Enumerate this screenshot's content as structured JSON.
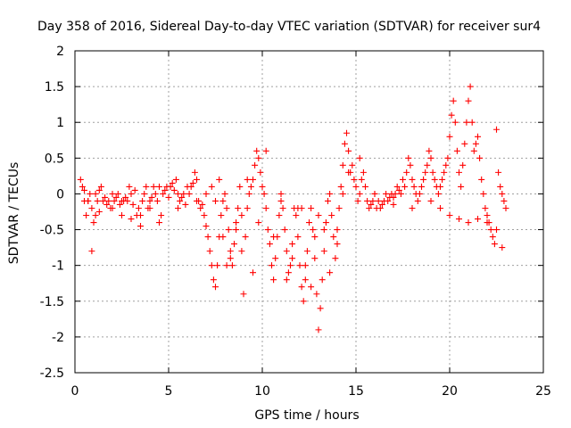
{
  "chart_data": {
    "type": "scatter",
    "title": "Day 358 of 2016, Sidereal Day-to-day VTEC variation (SDTVAR) for receiver sur4",
    "xlabel": "GPS time / hours",
    "ylabel": "SDTVAR / TECUs",
    "xlim": [
      0,
      25
    ],
    "ylim": [
      -2.5,
      2
    ],
    "xticks": [
      "0",
      "5",
      "10",
      "15",
      "20",
      "25"
    ],
    "yticks": [
      "-2.5",
      "-2",
      "-1.5",
      "-1",
      "-0.5",
      "0",
      "0.5",
      "1",
      "1.5",
      "2"
    ],
    "grid": true,
    "marker": "+",
    "color": "#ff0000",
    "series": [
      {
        "name": "SDTVAR",
        "x": [
          0.3,
          0.4,
          0.5,
          0.6,
          0.7,
          0.8,
          0.9,
          1.0,
          1.1,
          1.2,
          1.3,
          1.4,
          1.5,
          1.6,
          1.7,
          1.8,
          1.9,
          2.0,
          2.1,
          2.2,
          2.3,
          2.4,
          2.5,
          2.6,
          2.7,
          2.8,
          2.9,
          3.0,
          3.1,
          3.2,
          3.3,
          3.4,
          3.5,
          3.6,
          3.7,
          3.8,
          3.9,
          4.0,
          4.1,
          4.2,
          4.3,
          4.4,
          4.5,
          4.6,
          4.7,
          4.8,
          4.9,
          5.0,
          5.1,
          5.2,
          5.3,
          5.4,
          5.5,
          5.6,
          5.7,
          5.8,
          5.9,
          6.0,
          6.1,
          6.2,
          6.3,
          6.4,
          6.5,
          6.6,
          6.7,
          6.8,
          6.9,
          7.0,
          7.1,
          7.2,
          7.3,
          7.4,
          7.5,
          7.6,
          7.7,
          7.8,
          7.9,
          8.0,
          8.1,
          8.2,
          8.3,
          8.4,
          8.5,
          8.6,
          8.7,
          8.8,
          8.9,
          9.0,
          9.1,
          9.2,
          9.3,
          9.4,
          9.5,
          9.6,
          9.7,
          9.8,
          9.9,
          10.0,
          10.1,
          10.2,
          10.3,
          10.4,
          10.5,
          10.6,
          10.7,
          10.8,
          10.9,
          11.0,
          11.1,
          11.2,
          11.3,
          11.4,
          11.5,
          11.6,
          11.7,
          11.8,
          11.9,
          12.0,
          12.1,
          12.2,
          12.3,
          12.4,
          12.5,
          12.6,
          12.7,
          12.8,
          12.9,
          13.0,
          13.1,
          13.2,
          13.3,
          13.4,
          13.5,
          13.6,
          13.7,
          13.8,
          13.9,
          14.0,
          14.1,
          14.2,
          14.3,
          14.4,
          14.5,
          14.6,
          14.7,
          14.8,
          14.9,
          15.0,
          15.1,
          15.2,
          15.3,
          15.4,
          15.5,
          15.6,
          15.7,
          15.8,
          15.9,
          16.0,
          16.1,
          16.2,
          16.3,
          16.4,
          16.5,
          16.6,
          16.7,
          16.8,
          16.9,
          17.0,
          17.1,
          17.2,
          17.3,
          17.4,
          17.5,
          17.6,
          17.7,
          17.8,
          17.9,
          18.0,
          18.1,
          18.2,
          18.3,
          18.4,
          18.5,
          18.6,
          18.7,
          18.8,
          18.9,
          19.0,
          19.1,
          19.2,
          19.3,
          19.4,
          19.5,
          19.6,
          19.7,
          19.8,
          19.9,
          20.0,
          20.1,
          20.2,
          20.3,
          20.4,
          20.5,
          20.6,
          20.7,
          20.8,
          20.9,
          21.0,
          21.1,
          21.2,
          21.3,
          21.4,
          21.5,
          21.6,
          21.7,
          21.8,
          21.9,
          22.0,
          22.1,
          22.2,
          22.3,
          22.4,
          22.5,
          22.6,
          22.7,
          22.8,
          22.9,
          23.0,
          0.5,
          0.7,
          0.9,
          1.1,
          1.3,
          2.0,
          2.5,
          3.0,
          3.5,
          4.0,
          4.5,
          5.5,
          6.5,
          7.0,
          7.3,
          7.5,
          7.7,
          7.9,
          8.1,
          8.3,
          8.6,
          8.9,
          9.2,
          9.5,
          9.8,
          10.2,
          10.6,
          11.0,
          11.3,
          11.6,
          11.9,
          12.1,
          12.3,
          12.6,
          12.8,
          13.0,
          13.3,
          13.6,
          14.0,
          14.3,
          14.6,
          15.2,
          16.0,
          17.0,
          18.0,
          19.0,
          19.5,
          20.0,
          20.5,
          21.0,
          21.5,
          22.0,
          22.5,
          22.8
        ],
        "y": [
          0.2,
          0.1,
          0.05,
          -0.3,
          -0.1,
          0.0,
          -0.8,
          -0.4,
          0.0,
          -0.1,
          0.05,
          0.1,
          -0.1,
          -0.05,
          -0.15,
          -0.1,
          -0.2,
          0.0,
          -0.1,
          -0.05,
          0.0,
          -0.15,
          -0.1,
          -0.1,
          -0.05,
          -0.1,
          0.1,
          0.0,
          -0.15,
          0.05,
          -0.3,
          -0.2,
          -0.45,
          -0.1,
          0.0,
          0.1,
          -0.2,
          -0.1,
          -0.05,
          0.1,
          0.0,
          -0.1,
          -0.4,
          -0.3,
          0.0,
          0.05,
          0.1,
          -0.05,
          0.1,
          0.15,
          0.05,
          0.2,
          0.0,
          -0.1,
          -0.05,
          0.0,
          -0.15,
          0.1,
          0.0,
          0.1,
          0.15,
          0.3,
          0.2,
          -0.1,
          -0.2,
          -0.15,
          -0.3,
          -0.45,
          -0.6,
          -0.8,
          -1.0,
          -1.2,
          -1.3,
          -1.0,
          -0.6,
          -0.3,
          -0.1,
          0.0,
          -0.2,
          -0.5,
          -0.8,
          -1.0,
          -0.7,
          -0.4,
          -0.2,
          0.1,
          -0.3,
          -1.4,
          -0.6,
          -0.2,
          0.0,
          0.1,
          0.2,
          0.4,
          0.6,
          0.5,
          0.3,
          0.1,
          0.0,
          -0.2,
          -0.5,
          -0.7,
          -1.0,
          -1.2,
          -0.9,
          -0.6,
          -0.3,
          -0.1,
          -0.2,
          -0.5,
          -0.8,
          -1.1,
          -1.0,
          -0.7,
          -0.2,
          -0.3,
          -0.6,
          -1.0,
          -1.3,
          -1.5,
          -1.2,
          -0.8,
          -0.4,
          -0.2,
          -0.5,
          -0.9,
          -1.4,
          -1.9,
          -1.6,
          -1.2,
          -0.8,
          -0.4,
          -0.1,
          0.0,
          -0.3,
          -0.6,
          -0.9,
          -0.5,
          -0.2,
          0.1,
          0.4,
          0.7,
          0.85,
          0.6,
          0.3,
          0.4,
          0.2,
          0.1,
          -0.1,
          0.0,
          0.2,
          0.3,
          0.1,
          -0.1,
          -0.2,
          -0.15,
          -0.1,
          0.0,
          -0.2,
          -0.1,
          -0.2,
          -0.15,
          -0.1,
          0.0,
          -0.1,
          -0.05,
          0.0,
          -0.05,
          0.0,
          0.1,
          0.05,
          0.0,
          0.2,
          0.1,
          0.3,
          0.5,
          0.4,
          0.2,
          0.1,
          0.0,
          -0.1,
          0.0,
          0.1,
          0.2,
          0.3,
          0.4,
          0.6,
          0.5,
          0.3,
          0.2,
          0.1,
          0.0,
          0.1,
          0.2,
          0.3,
          0.4,
          0.5,
          0.8,
          1.1,
          1.3,
          1.0,
          0.6,
          0.3,
          0.1,
          0.4,
          0.7,
          1.0,
          1.3,
          1.5,
          1.0,
          0.6,
          0.7,
          0.8,
          0.5,
          0.2,
          0.0,
          -0.2,
          -0.3,
          -0.4,
          -0.5,
          -0.6,
          -0.7,
          0.9,
          0.3,
          0.1,
          0.0,
          -0.1,
          -0.2,
          -0.1,
          -0.1,
          -0.2,
          -0.3,
          -0.25,
          -0.2,
          -0.3,
          -0.35,
          -0.3,
          -0.2,
          0.1,
          -0.2,
          -0.1,
          0.0,
          0.1,
          -0.1,
          0.2,
          -0.6,
          -1.0,
          -0.9,
          -0.5,
          -0.8,
          0.2,
          -1.1,
          -0.4,
          0.6,
          -0.6,
          0.0,
          -1.2,
          -0.9,
          -0.2,
          -0.2,
          -1.0,
          -1.3,
          -0.6,
          -0.3,
          -0.5,
          -1.1,
          -0.7,
          0.0,
          0.3,
          0.5,
          0.0,
          -0.15,
          -0.2,
          -0.1,
          -0.2,
          -0.3,
          -0.35,
          -0.4,
          -0.35,
          -0.4,
          -0.5,
          -0.75
        ]
      }
    ]
  }
}
